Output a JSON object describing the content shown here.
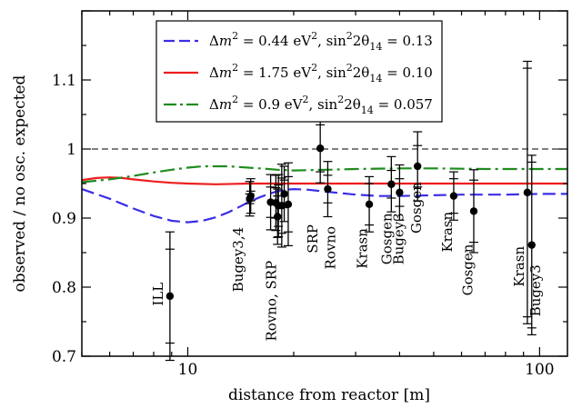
{
  "chart_data": {
    "type": "scatter",
    "xlabel": "distance from reactor [m]",
    "ylabel": "observed / no osc. expected",
    "xscale": "log",
    "xlim": [
      5,
      120
    ],
    "ylim": [
      0.7,
      1.2
    ],
    "x_ticks": [
      10,
      100
    ],
    "y_ticks": [
      0.7,
      0.8,
      0.9,
      1.0,
      1.1
    ],
    "y_tick_labels": [
      "0.7",
      "0.8",
      "0.9",
      "1",
      "1.1"
    ],
    "reference_line": 1.0,
    "legend_position": "top-center",
    "legend_entries": [
      {
        "label": "Δm² = 0.44 eV², sin²2θ14 = 0.13",
        "parts": [
          "Δ",
          "m",
          "2",
          " = 0.44 eV",
          "2",
          ", sin",
          "2",
          "2θ",
          "14",
          " = 0.13"
        ],
        "color": "#3a2ee6",
        "style": "dashed"
      },
      {
        "label": "Δm² = 1.75 eV², sin²2θ14 = 0.10",
        "parts": [
          "Δ",
          "m",
          "2",
          " = 1.75 eV",
          "2",
          ", sin",
          "2",
          "2θ",
          "14",
          " = 0.10"
        ],
        "color": "#ee1c1c",
        "style": "solid"
      },
      {
        "label": "Δm² = 0.9 eV², sin²2θ14 = 0.057",
        "parts": [
          "Δ",
          "m",
          "2",
          " = 0.9 eV",
          "2",
          ", sin",
          "2",
          "2θ",
          "14",
          " = 0.057"
        ],
        "color": "#1e8c1e",
        "style": "dashdot"
      }
    ],
    "points": [
      {
        "x": 8.9,
        "y": 0.787,
        "err_stat": 0.068,
        "err_tot": 0.093
      },
      {
        "x": 15.0,
        "y": 0.928,
        "err_stat": 0.007,
        "err_tot": 0.025
      },
      {
        "x": 15.1,
        "y": 0.932,
        "err_stat": 0.007,
        "err_tot": 0.025
      },
      {
        "x": 17.2,
        "y": 0.923,
        "err_stat": 0.022,
        "err_tot": 0.04
      },
      {
        "x": 17.8,
        "y": 0.922,
        "err_stat": 0.022,
        "err_tot": 0.04
      },
      {
        "x": 18.0,
        "y": 0.902,
        "err_stat": 0.03,
        "err_tot": 0.04
      },
      {
        "x": 18.1,
        "y": 0.918,
        "err_stat": 0.03,
        "err_tot": 0.045
      },
      {
        "x": 18.5,
        "y": 0.918,
        "err_stat": 0.04,
        "err_tot": 0.06
      },
      {
        "x": 18.8,
        "y": 0.935,
        "err_stat": 0.02,
        "err_tot": 0.04
      },
      {
        "x": 19.3,
        "y": 0.92,
        "err_stat": 0.04,
        "err_tot": 0.06
      },
      {
        "x": 23.8,
        "y": 1.001,
        "err_stat": 0.034,
        "err_tot": 0.05
      },
      {
        "x": 25.0,
        "y": 0.942,
        "err_stat": 0.02,
        "err_tot": 0.04
      },
      {
        "x": 32.8,
        "y": 0.92,
        "err_stat": 0.03,
        "err_tot": 0.04
      },
      {
        "x": 37.9,
        "y": 0.949,
        "err_stat": 0.02,
        "err_tot": 0.04
      },
      {
        "x": 40.0,
        "y": 0.937,
        "err_stat": 0.02,
        "err_tot": 0.04
      },
      {
        "x": 45.0,
        "y": 0.975,
        "err_stat": 0.03,
        "err_tot": 0.05
      },
      {
        "x": 57.0,
        "y": 0.932,
        "err_stat": 0.025,
        "err_tot": 0.035
      },
      {
        "x": 65.0,
        "y": 0.91,
        "err_stat": 0.045,
        "err_tot": 0.06
      },
      {
        "x": 92.3,
        "y": 0.937,
        "err_stat": 0.18,
        "err_tot": 0.19
      },
      {
        "x": 95.0,
        "y": 0.861,
        "err_stat": 0.12,
        "err_tot": 0.13
      }
    ],
    "annotations": [
      {
        "text": "ILL",
        "x": 8.3,
        "y": 0.79
      },
      {
        "text": "Bugey3,4",
        "x": 14.0,
        "y": 0.84
      },
      {
        "text": "Rovno, SRP",
        "x": 17.4,
        "y": 0.78
      },
      {
        "text": "SRP",
        "x": 22.8,
        "y": 0.87
      },
      {
        "text": "Rovno",
        "x": 25.6,
        "y": 0.857
      },
      {
        "text": "Krasn",
        "x": 31.5,
        "y": 0.856
      },
      {
        "text": "Gosgen",
        "x": 37.0,
        "y": 0.87
      },
      {
        "text": "Bugey3",
        "x": 40.0,
        "y": 0.87
      },
      {
        "text": "Gosgen",
        "x": 45.0,
        "y": 0.915
      },
      {
        "text": "Krasn",
        "x": 55.0,
        "y": 0.88
      },
      {
        "text": "Gosgen",
        "x": 63.0,
        "y": 0.825
      },
      {
        "text": "Krasn",
        "x": 88.0,
        "y": 0.83
      },
      {
        "text": "Bugey3",
        "x": 98.0,
        "y": 0.795
      }
    ],
    "series": [
      {
        "name": "Δm² = 0.44 eV², sin²2θ14 = 0.13",
        "color": "#3a2ee6",
        "x": [
          5,
          6,
          7,
          8,
          9,
          10,
          11,
          12,
          13,
          14,
          15,
          16,
          17,
          18,
          19,
          20,
          22,
          25,
          30,
          35,
          40,
          50,
          60,
          80,
          100,
          120
        ],
        "y": [
          0.942,
          0.928,
          0.914,
          0.903,
          0.896,
          0.894,
          0.896,
          0.901,
          0.908,
          0.916,
          0.924,
          0.93,
          0.935,
          0.939,
          0.941,
          0.942,
          0.941,
          0.938,
          0.934,
          0.932,
          0.932,
          0.933,
          0.934,
          0.934,
          0.935,
          0.935
        ]
      },
      {
        "name": "Δm² = 1.75 eV², sin²2θ14 = 0.10",
        "color": "#ee1c1c",
        "x": [
          5,
          5.5,
          6,
          6.5,
          7,
          8,
          9,
          10,
          12,
          15,
          20,
          30,
          50,
          80,
          120
        ],
        "y": [
          0.955,
          0.958,
          0.959,
          0.958,
          0.956,
          0.953,
          0.951,
          0.95,
          0.949,
          0.95,
          0.95,
          0.95,
          0.95,
          0.95,
          0.95
        ]
      },
      {
        "name": "Δm² = 0.9 eV², sin²2θ14 = 0.057",
        "color": "#1e8c1e",
        "x": [
          5,
          6,
          7,
          8,
          9,
          10,
          11,
          12,
          13,
          14,
          16,
          18,
          20,
          25,
          30,
          40,
          50,
          70,
          100,
          120
        ],
        "y": [
          0.952,
          0.956,
          0.961,
          0.966,
          0.97,
          0.973,
          0.975,
          0.975,
          0.975,
          0.974,
          0.972,
          0.97,
          0.969,
          0.97,
          0.971,
          0.972,
          0.972,
          0.971,
          0.971,
          0.971
        ]
      }
    ]
  }
}
